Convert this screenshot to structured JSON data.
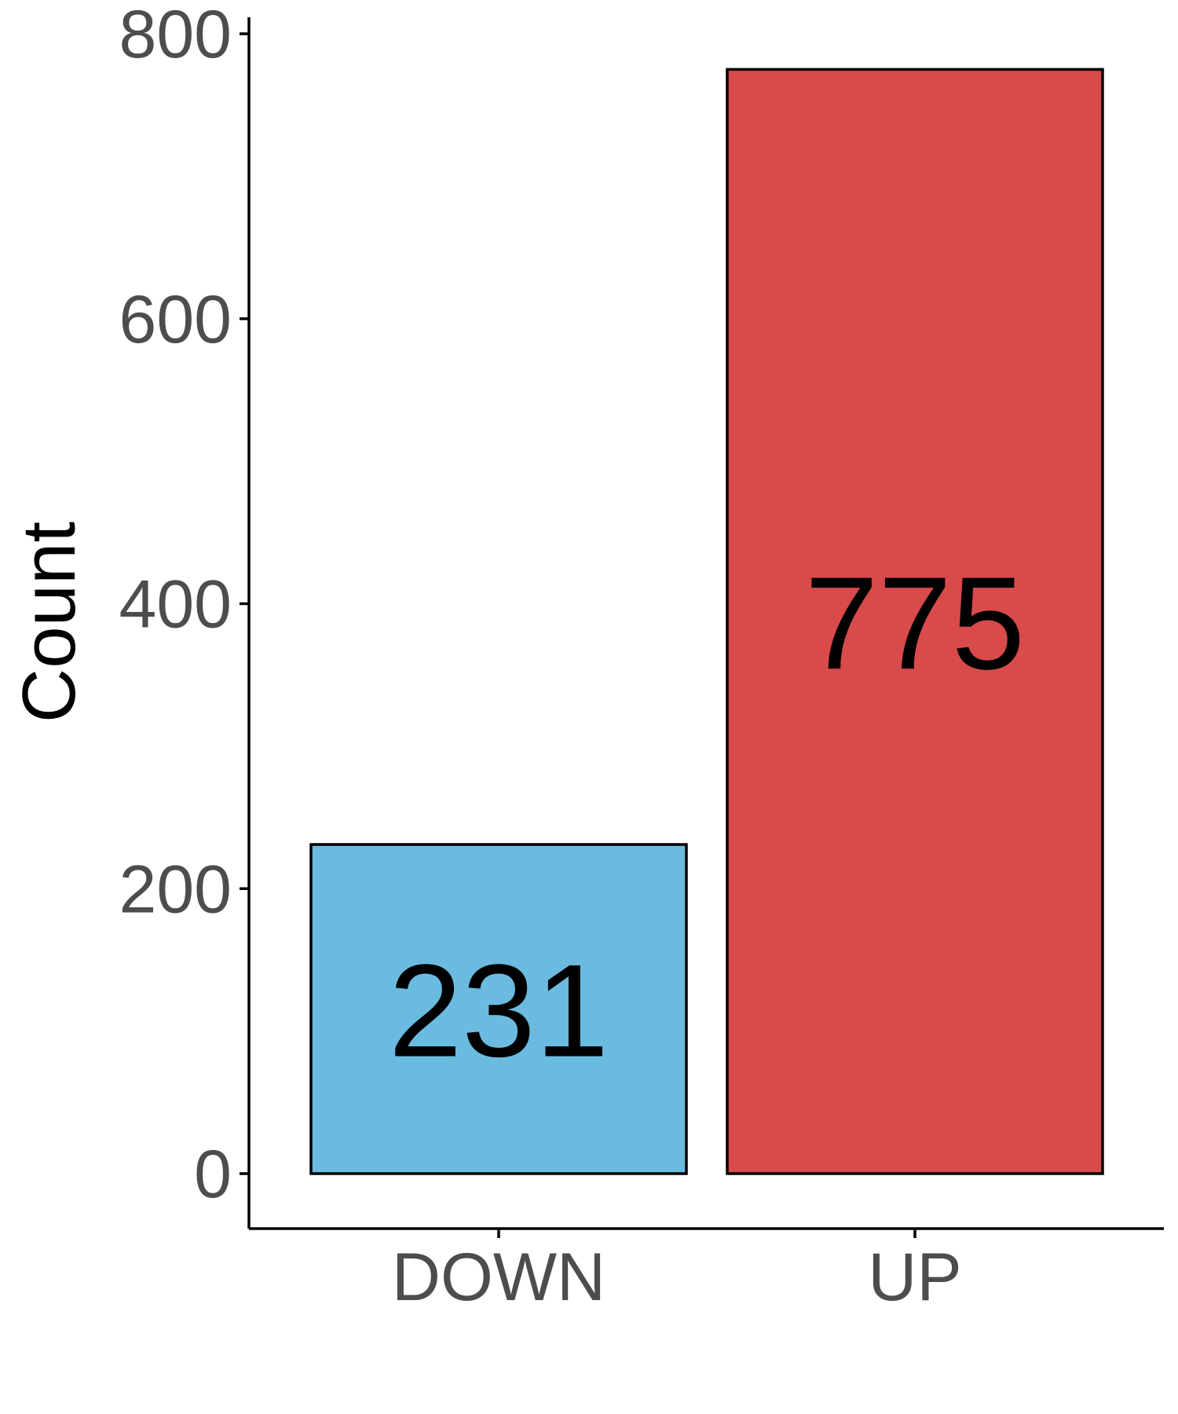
{
  "chart_data": {
    "type": "bar",
    "categories": [
      "DOWN",
      "UP"
    ],
    "values": [
      231,
      775
    ],
    "data_labels": [
      "231",
      "775"
    ],
    "colors": [
      "#6BBBE0",
      "#D94A4B"
    ],
    "title": "",
    "xlabel": "",
    "ylabel": "Count",
    "ylim": [
      0,
      800
    ],
    "yticks": [
      "0",
      "200",
      "400",
      "600",
      "800"
    ],
    "grid": false,
    "legend": "none"
  }
}
